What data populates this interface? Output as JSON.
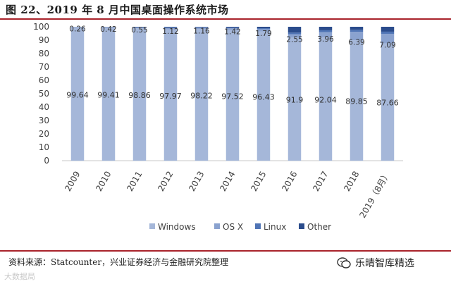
{
  "header": {
    "title": "图 22、2019 年 8 月中国桌面操作系统市场"
  },
  "chart_data": {
    "type": "bar",
    "stacked": true,
    "categories": [
      "2009",
      "2010",
      "2011",
      "2012",
      "2013",
      "2014",
      "2015",
      "2016",
      "2017",
      "2018",
      "2019（8月）"
    ],
    "series": [
      {
        "name": "Windows",
        "color": "#a5b7d9",
        "values": [
          99.64,
          99.41,
          98.86,
          97.97,
          98.22,
          97.52,
          96.43,
          91.9,
          92.04,
          89.85,
          87.66
        ]
      },
      {
        "name": "OS X",
        "color": "#8aa2cf",
        "values": [
          0.26,
          0.42,
          0.55,
          1.12,
          1.16,
          1.42,
          1.79,
          2.55,
          3.96,
          6.39,
          7.09
        ]
      },
      {
        "name": "Linux",
        "color": "#4f74b5",
        "values": [
          0.05,
          0.07,
          0.2,
          0.3,
          0.3,
          0.4,
          0.7,
          1.2,
          1.4,
          1.5,
          1.6
        ]
      },
      {
        "name": "Other",
        "color": "#2b4c8c",
        "values": [
          0.05,
          0.1,
          0.39,
          0.61,
          0.32,
          0.66,
          1.08,
          4.35,
          2.6,
          2.26,
          3.65
        ]
      }
    ],
    "labeled_series": [
      "Windows",
      "OS X"
    ],
    "y_ticks": [
      0,
      10,
      20,
      30,
      40,
      50,
      60,
      70,
      80,
      90,
      100
    ],
    "ylim": [
      0,
      100
    ],
    "grid": false,
    "legend_position": "bottom"
  },
  "footer": {
    "source": "资料来源：Statcounter，兴业证券经济与金融研究院整理",
    "watermark_left": "大数据局",
    "watermark_right": "乐晴智库精选"
  }
}
